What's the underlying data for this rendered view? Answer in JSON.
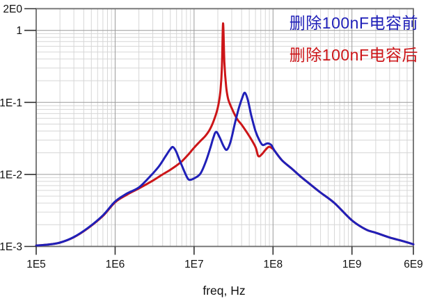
{
  "chart_data": {
    "type": "line",
    "title": "",
    "xlabel": "freq, Hz",
    "ylabel": "",
    "x_scale": "log",
    "y_scale": "log",
    "x_range": [
      100000.0,
      6000000000.0
    ],
    "y_range": [
      0.001,
      2
    ],
    "grid": {
      "major": true,
      "minor": true,
      "major_color": "#9a9a9a",
      "minor_color": "#d6d6d6"
    },
    "axis_color": "#6b6b6b",
    "tick_color": "#2f2f2f",
    "text_color": "#111111",
    "legend_position": "top-right-inside",
    "x_ticks": [
      {
        "value": 100000.0,
        "label": "1E5"
      },
      {
        "value": 1000000.0,
        "label": "1E6"
      },
      {
        "value": 10000000.0,
        "label": "1E7"
      },
      {
        "value": 100000000.0,
        "label": "1E8"
      },
      {
        "value": 1000000000.0,
        "label": "1E9"
      },
      {
        "value": 6000000000.0,
        "label": "6E9"
      }
    ],
    "y_ticks": [
      {
        "value": 2,
        "label": "2E0"
      },
      {
        "value": 1,
        "label": "1"
      },
      {
        "value": 0.1,
        "label": "1E-1"
      },
      {
        "value": 0.01,
        "label": "1E-2"
      },
      {
        "value": 0.001,
        "label": "1E-3"
      }
    ],
    "series": [
      {
        "name": "删除100nF电容前",
        "color": "#2020b8",
        "points": [
          [
            100000.0,
            0.00103
          ],
          [
            140000.0,
            0.00106
          ],
          [
            200000.0,
            0.00113
          ],
          [
            300000.0,
            0.00135
          ],
          [
            450000.0,
            0.0018
          ],
          [
            700000.0,
            0.0027
          ],
          [
            1000000.0,
            0.0042
          ],
          [
            1400000.0,
            0.0054
          ],
          [
            2000000.0,
            0.0066
          ],
          [
            2800000.0,
            0.0095
          ],
          [
            3600000.0,
            0.013
          ],
          [
            4400000.0,
            0.0182
          ],
          [
            5000000.0,
            0.0224
          ],
          [
            5400000.0,
            0.024
          ],
          [
            5900000.0,
            0.021
          ],
          [
            6600000.0,
            0.0155
          ],
          [
            7400000.0,
            0.0115
          ],
          [
            8200000.0,
            0.009
          ],
          [
            8800000.0,
            0.0084
          ],
          [
            10000000.0,
            0.0088
          ],
          [
            12000000.0,
            0.0102
          ],
          [
            14000000.0,
            0.0148
          ],
          [
            16000000.0,
            0.023
          ],
          [
            17500000.0,
            0.032
          ],
          [
            19000000.0,
            0.039
          ],
          [
            21000000.0,
            0.033
          ],
          [
            23500000.0,
            0.025
          ],
          [
            26000000.0,
            0.022
          ],
          [
            29000000.0,
            0.0285
          ],
          [
            33000000.0,
            0.052
          ],
          [
            37000000.0,
            0.084
          ],
          [
            41000000.0,
            0.118
          ],
          [
            44000000.0,
            0.136
          ],
          [
            48000000.0,
            0.108
          ],
          [
            53000000.0,
            0.066
          ],
          [
            60000000.0,
            0.04
          ],
          [
            67000000.0,
            0.03
          ],
          [
            74000000.0,
            0.0256
          ],
          [
            85000000.0,
            0.027
          ],
          [
            95000000.0,
            0.0256
          ],
          [
            105000000.0,
            0.0212
          ],
          [
            130000000.0,
            0.0157
          ],
          [
            170000000.0,
            0.0122
          ],
          [
            220000000.0,
            0.0095
          ],
          [
            300000000.0,
            0.0072
          ],
          [
            400000000.0,
            0.0056
          ],
          [
            600000000.0,
            0.004
          ],
          [
            1000000000.0,
            0.0023
          ],
          [
            1500000000.0,
            0.00172
          ],
          [
            2000000000.0,
            0.00155
          ],
          [
            3000000000.0,
            0.00133
          ],
          [
            4500000000.0,
            0.00118
          ],
          [
            6000000000.0,
            0.00107
          ]
        ]
      },
      {
        "name": "删除100nF电容后",
        "color": "#cc1518",
        "points": [
          [
            100000.0,
            0.00103
          ],
          [
            140000.0,
            0.00106
          ],
          [
            200000.0,
            0.00113
          ],
          [
            300000.0,
            0.00134
          ],
          [
            450000.0,
            0.00178
          ],
          [
            700000.0,
            0.00265
          ],
          [
            1000000.0,
            0.0041
          ],
          [
            1400000.0,
            0.0052
          ],
          [
            2000000.0,
            0.0064
          ],
          [
            3000000.0,
            0.0082
          ],
          [
            4000000.0,
            0.01
          ],
          [
            5000000.0,
            0.0116
          ],
          [
            6000000.0,
            0.0133
          ],
          [
            7000000.0,
            0.0152
          ],
          [
            8500000.0,
            0.019
          ],
          [
            10000000.0,
            0.0235
          ],
          [
            12000000.0,
            0.029
          ],
          [
            14000000.0,
            0.0345
          ],
          [
            16000000.0,
            0.043
          ],
          [
            18000000.0,
            0.058
          ],
          [
            20000000.0,
            0.085
          ],
          [
            21500000.0,
            0.14
          ],
          [
            22500000.0,
            0.3
          ],
          [
            23300000.0,
            1.25
          ],
          [
            24200000.0,
            0.36
          ],
          [
            25500000.0,
            0.165
          ],
          [
            27000000.0,
            0.112
          ],
          [
            30000000.0,
            0.083
          ],
          [
            35000000.0,
            0.059
          ],
          [
            40000000.0,
            0.049
          ],
          [
            50000000.0,
            0.034
          ],
          [
            60000000.0,
            0.024
          ],
          [
            65000000.0,
            0.018
          ],
          [
            72000000.0,
            0.019
          ],
          [
            80000000.0,
            0.0218
          ],
          [
            89000000.0,
            0.0242
          ],
          [
            100000000.0,
            0.0225
          ],
          [
            105000000.0,
            0.0212
          ],
          [
            130000000.0,
            0.0157
          ],
          [
            170000000.0,
            0.0122
          ],
          [
            220000000.0,
            0.0095
          ],
          [
            300000000.0,
            0.0072
          ],
          [
            400000000.0,
            0.0056
          ],
          [
            600000000.0,
            0.004
          ],
          [
            1000000000.0,
            0.0023
          ],
          [
            1500000000.0,
            0.00172
          ],
          [
            2000000000.0,
            0.00155
          ],
          [
            3000000000.0,
            0.00133
          ],
          [
            4500000000.0,
            0.00118
          ],
          [
            6000000000.0,
            0.00107
          ]
        ]
      }
    ]
  }
}
